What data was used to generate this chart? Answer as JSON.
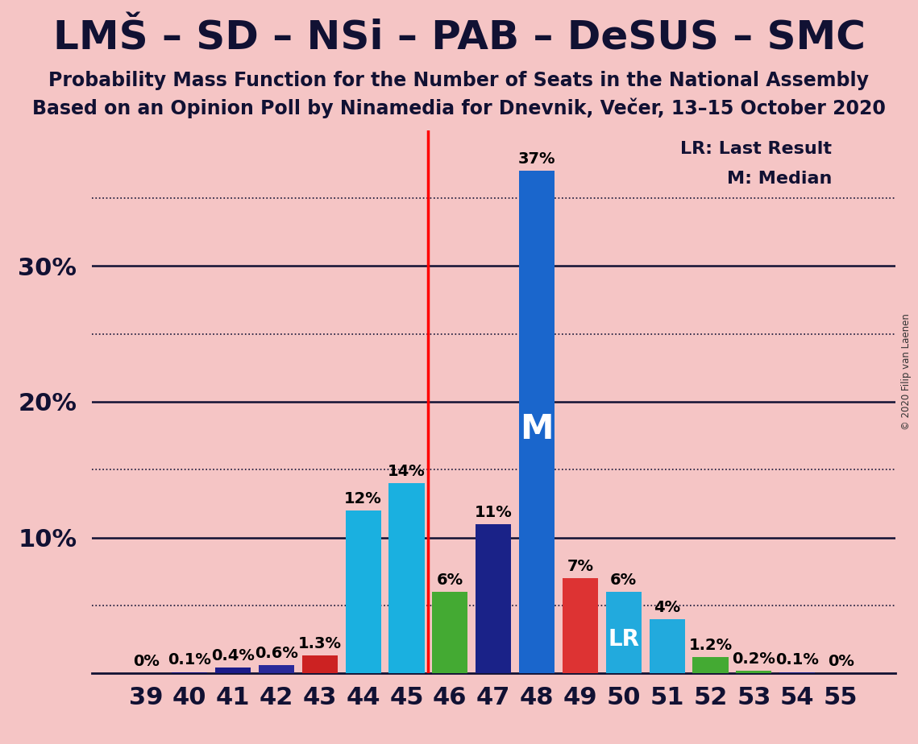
{
  "title": "LMŠ – SD – NSi – PAB – DeSUS – SMC",
  "subtitle1": "Probability Mass Function for the Number of Seats in the National Assembly",
  "subtitle2": "Based on an Opinion Poll by Ninamedia for Dnevnik, Večer, 13–15 October 2020",
  "copyright": "© 2020 Filip van Laenen",
  "background_color": "#f5c5c5",
  "seats": [
    39,
    40,
    41,
    42,
    43,
    44,
    45,
    46,
    47,
    48,
    49,
    50,
    51,
    52,
    53,
    54,
    55
  ],
  "probabilities": [
    0.0,
    0.1,
    0.4,
    0.6,
    1.3,
    12.0,
    14.0,
    6.0,
    11.0,
    37.0,
    7.0,
    6.0,
    4.0,
    1.2,
    0.2,
    0.1,
    0.0
  ],
  "labels": [
    "0%",
    "0.1%",
    "0.4%",
    "0.6%",
    "1.3%",
    "12%",
    "14%",
    "6%",
    "11%",
    "37%",
    "7%",
    "6%",
    "4%",
    "1.2%",
    "0.2%",
    "0.1%",
    "0%"
  ],
  "bar_colors": [
    "#10107a",
    "#10107a",
    "#1c1c8a",
    "#2a2a9a",
    "#cc2222",
    "#1ab0e0",
    "#1ab0e0",
    "#44aa33",
    "#1a2288",
    "#1a66cc",
    "#dd3333",
    "#22aadd",
    "#22aadd",
    "#44aa33",
    "#44aa33",
    "#1a2288",
    "#10107a"
  ],
  "median_seat": 48,
  "last_result_seat": 50,
  "vline_x": 45.5,
  "ylim": [
    0,
    40
  ],
  "solid_grid": [
    10,
    20,
    30
  ],
  "dotted_grid": [
    5,
    15,
    25,
    35
  ],
  "ytick_positions": [
    10,
    20,
    30
  ],
  "ytick_labels": [
    "10%",
    "20%",
    "30%"
  ],
  "legend_lr": "LR: Last Result",
  "legend_m": "M: Median",
  "title_fontsize": 36,
  "subtitle_fontsize": 17,
  "label_fontsize": 14,
  "tick_fontsize": 22
}
